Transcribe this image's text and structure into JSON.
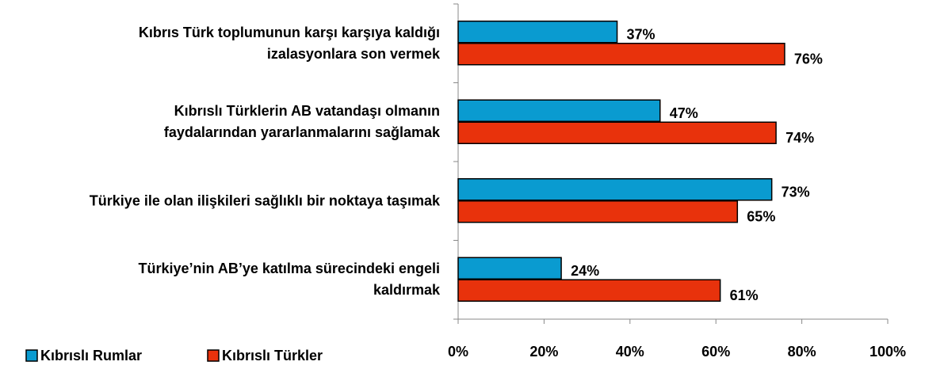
{
  "chart_data": {
    "type": "bar",
    "orientation": "horizontal",
    "categories": [
      "Kıbrıs Türk toplumunun karşı karşıya kaldığı\nizalasyonlara son vermek",
      "Kıbrıslı Türklerin AB vatandaşı olmanın\nfaydalarından yararlanmalarını sağlamak",
      "Türkiye ile olan ilişkileri sağlıklı bir noktaya taşımak",
      "Türkiye’nin AB’ye katılma sürecindeki engeli\nkaldırmak"
    ],
    "series": [
      {
        "name": "Kıbrıslı Rumlar",
        "color": "#0a9bd0",
        "values": [
          37,
          47,
          73,
          24
        ],
        "value_labels": [
          "37%",
          "47%",
          "73%",
          "24%"
        ]
      },
      {
        "name": "Kıbrıslı Türkler",
        "color": "#e8320c",
        "values": [
          76,
          74,
          65,
          61
        ],
        "value_labels": [
          "76%",
          "74%",
          "65%",
          "61%"
        ]
      }
    ],
    "xlim": [
      0,
      100
    ],
    "xticks": [
      {
        "value": 0,
        "label": "0%"
      },
      {
        "value": 20,
        "label": "20%"
      },
      {
        "value": 40,
        "label": "40%"
      },
      {
        "value": 60,
        "label": "60%"
      },
      {
        "value": 80,
        "label": "80%"
      },
      {
        "value": 100,
        "label": "100%"
      }
    ],
    "legend": "bottom-left"
  }
}
